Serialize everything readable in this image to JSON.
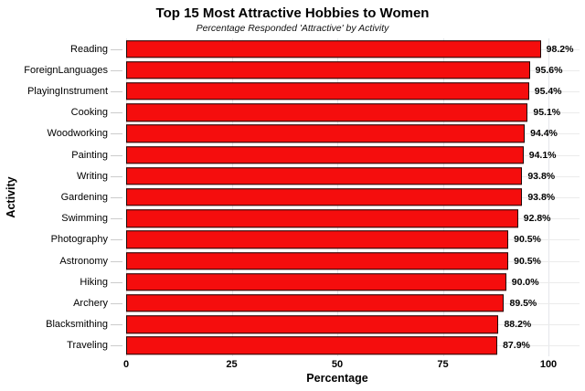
{
  "chart_data": {
    "type": "bar",
    "orientation": "horizontal",
    "title": "Top 15 Most Attractive Hobbies to Women",
    "subtitle": "Percentage Responded 'Attractive' by Activity",
    "xlabel": "Percentage",
    "ylabel": "Activity",
    "xlim": [
      0,
      100
    ],
    "xticks": [
      0,
      25,
      50,
      75,
      100
    ],
    "grid": true,
    "legend": "none",
    "bar_color": "#f50d0d",
    "bar_border_color": "#1b0909",
    "categories": [
      "Reading",
      "ForeignLanguages",
      "PlayingInstrument",
      "Cooking",
      "Woodworking",
      "Painting",
      "Writing",
      "Gardening",
      "Swimming",
      "Photography",
      "Astronomy",
      "Hiking",
      "Archery",
      "Blacksmithing",
      "Traveling"
    ],
    "values": [
      98.2,
      95.6,
      95.4,
      95.1,
      94.4,
      94.1,
      93.8,
      93.8,
      92.8,
      90.5,
      90.5,
      90.0,
      89.5,
      88.2,
      87.9
    ],
    "value_labels": [
      "98.2%",
      "95.6%",
      "95.4%",
      "95.1%",
      "94.4%",
      "94.1%",
      "93.8%",
      "93.8%",
      "92.8%",
      "90.5%",
      "90.5%",
      "90.0%",
      "89.5%",
      "88.2%",
      "87.9%"
    ]
  }
}
